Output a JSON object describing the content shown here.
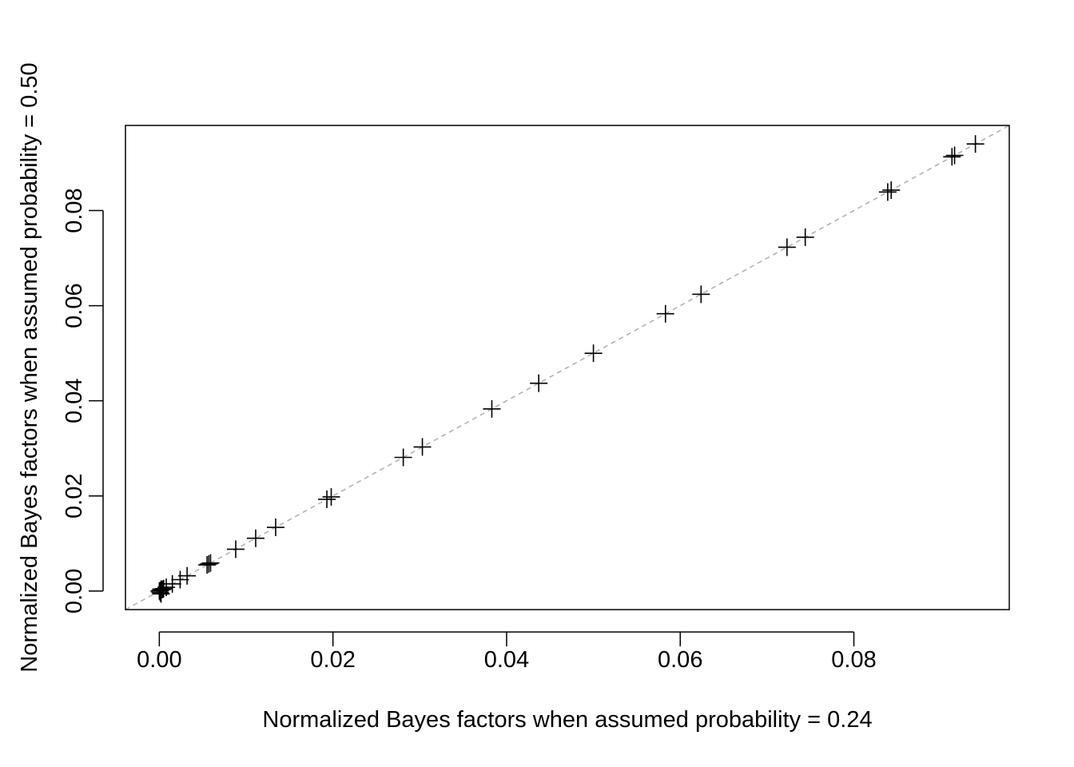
{
  "chart_data": {
    "type": "scatter",
    "title": "",
    "xlabel": "Normalized Bayes factors when assumed probability = 0.24",
    "ylabel": "Normalized Bayes factors when assumed probability = 0.50",
    "xlim": [
      -0.0039,
      0.0979
    ],
    "ylim": [
      -0.0039,
      0.0979
    ],
    "xticks": [
      0.0,
      0.02,
      0.04,
      0.06,
      0.08
    ],
    "xtick_labels": [
      "0.00",
      "0.02",
      "0.04",
      "0.06",
      "0.08"
    ],
    "yticks": [
      0.0,
      0.02,
      0.04,
      0.06,
      0.08
    ],
    "ytick_labels": [
      "0.00",
      "0.02",
      "0.04",
      "0.06",
      "0.08"
    ],
    "marker": "plus",
    "reference_line": {
      "type": "identity",
      "style": "dashed",
      "color": "#b3b3b3"
    },
    "grid": false,
    "points": [
      {
        "x": 0.0,
        "y": 0.0
      },
      {
        "x": 0.0001,
        "y": 0.0001
      },
      {
        "x": 0.0001,
        "y": -0.0003
      },
      {
        "x": 0.0002,
        "y": 0.0004
      },
      {
        "x": 0.0002,
        "y": -0.0006
      },
      {
        "x": 0.0003,
        "y": 0.0003
      },
      {
        "x": 0.0004,
        "y": 0.0004
      },
      {
        "x": 0.0005,
        "y": 0.0005
      },
      {
        "x": 0.0008,
        "y": 0.0008
      },
      {
        "x": 0.0015,
        "y": 0.0015
      },
      {
        "x": 0.0024,
        "y": 0.0024
      },
      {
        "x": 0.0032,
        "y": 0.0032
      },
      {
        "x": 0.0055,
        "y": 0.0055
      },
      {
        "x": 0.0057,
        "y": 0.0057
      },
      {
        "x": 0.0059,
        "y": 0.0059
      },
      {
        "x": 0.0088,
        "y": 0.0088
      },
      {
        "x": 0.0111,
        "y": 0.0111
      },
      {
        "x": 0.0134,
        "y": 0.0134
      },
      {
        "x": 0.0193,
        "y": 0.0193
      },
      {
        "x": 0.0198,
        "y": 0.0198
      },
      {
        "x": 0.0281,
        "y": 0.0281
      },
      {
        "x": 0.0303,
        "y": 0.0303
      },
      {
        "x": 0.0383,
        "y": 0.0383
      },
      {
        "x": 0.0437,
        "y": 0.0437
      },
      {
        "x": 0.05,
        "y": 0.05
      },
      {
        "x": 0.0583,
        "y": 0.0583
      },
      {
        "x": 0.0624,
        "y": 0.0624
      },
      {
        "x": 0.0723,
        "y": 0.0723
      },
      {
        "x": 0.0744,
        "y": 0.0744
      },
      {
        "x": 0.0839,
        "y": 0.0839
      },
      {
        "x": 0.0843,
        "y": 0.0843
      },
      {
        "x": 0.0913,
        "y": 0.0913
      },
      {
        "x": 0.0916,
        "y": 0.0916
      },
      {
        "x": 0.094,
        "y": 0.094
      }
    ]
  }
}
